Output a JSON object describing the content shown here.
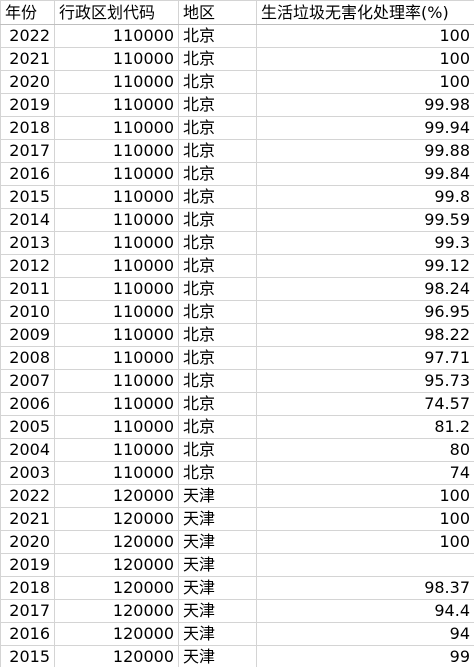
{
  "table": {
    "headers": [
      "年份",
      "行政区划代码",
      "地区",
      "生活垃圾无害化处理率(%)"
    ],
    "rows": [
      [
        "2022",
        "110000",
        "北京",
        "100"
      ],
      [
        "2021",
        "110000",
        "北京",
        "100"
      ],
      [
        "2020",
        "110000",
        "北京",
        "100"
      ],
      [
        "2019",
        "110000",
        "北京",
        "99.98"
      ],
      [
        "2018",
        "110000",
        "北京",
        "99.94"
      ],
      [
        "2017",
        "110000",
        "北京",
        "99.88"
      ],
      [
        "2016",
        "110000",
        "北京",
        "99.84"
      ],
      [
        "2015",
        "110000",
        "北京",
        "99.8"
      ],
      [
        "2014",
        "110000",
        "北京",
        "99.59"
      ],
      [
        "2013",
        "110000",
        "北京",
        "99.3"
      ],
      [
        "2012",
        "110000",
        "北京",
        "99.12"
      ],
      [
        "2011",
        "110000",
        "北京",
        "98.24"
      ],
      [
        "2010",
        "110000",
        "北京",
        "96.95"
      ],
      [
        "2009",
        "110000",
        "北京",
        "98.22"
      ],
      [
        "2008",
        "110000",
        "北京",
        "97.71"
      ],
      [
        "2007",
        "110000",
        "北京",
        "95.73"
      ],
      [
        "2006",
        "110000",
        "北京",
        "74.57"
      ],
      [
        "2005",
        "110000",
        "北京",
        "81.2"
      ],
      [
        "2004",
        "110000",
        "北京",
        "80"
      ],
      [
        "2003",
        "110000",
        "北京",
        "74"
      ],
      [
        "2022",
        "120000",
        "天津",
        "100"
      ],
      [
        "2021",
        "120000",
        "天津",
        "100"
      ],
      [
        "2020",
        "120000",
        "天津",
        "100"
      ],
      [
        "2019",
        "120000",
        "天津",
        ""
      ],
      [
        "2018",
        "120000",
        "天津",
        "98.37"
      ],
      [
        "2017",
        "120000",
        "天津",
        "94.4"
      ],
      [
        "2016",
        "120000",
        "天津",
        "94"
      ],
      [
        "2015",
        "120000",
        "天津",
        "99"
      ]
    ]
  }
}
